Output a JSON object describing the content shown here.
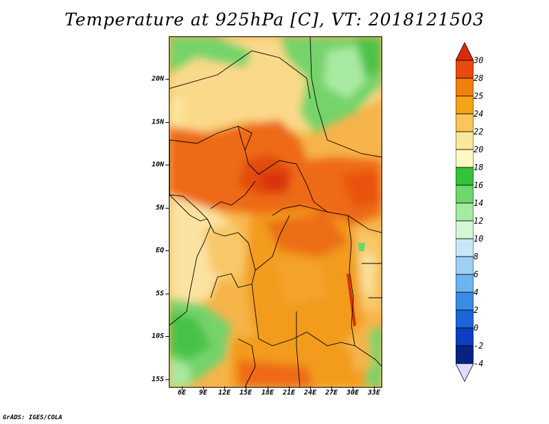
{
  "title": "Temperature at 925hPa [C], VT: 2018121503",
  "credit": "GrADS: IGES/COLA",
  "map": {
    "region": "Central Africa",
    "lat_labels": [
      "20N",
      "15N",
      "10N",
      "5N",
      "EQ",
      "5S",
      "10S",
      "15S"
    ],
    "lon_labels": [
      "6E",
      "9E",
      "12E",
      "15E",
      "18E",
      "21E",
      "24E",
      "27E",
      "30E",
      "33E"
    ]
  },
  "colorbar": {
    "labels": [
      "30",
      "28",
      "25",
      "24",
      "22",
      "20",
      "18",
      "16",
      "14",
      "12",
      "10",
      "8",
      "6",
      "4",
      "2",
      "0",
      "-2",
      "-4"
    ],
    "colors": [
      "#d92b06",
      "#ea4a0e",
      "#f0800c",
      "#f5a418",
      "#f8c65a",
      "#fae79b",
      "#fdf9c2",
      "#34c23b",
      "#6ed868",
      "#a4eaa0",
      "#d4f8d4",
      "#c8e8f8",
      "#9ed0f4",
      "#6cb4ee",
      "#3a8de4",
      "#1a66d8",
      "#0b3ec0",
      "#062284",
      "#050e58"
    ]
  }
}
